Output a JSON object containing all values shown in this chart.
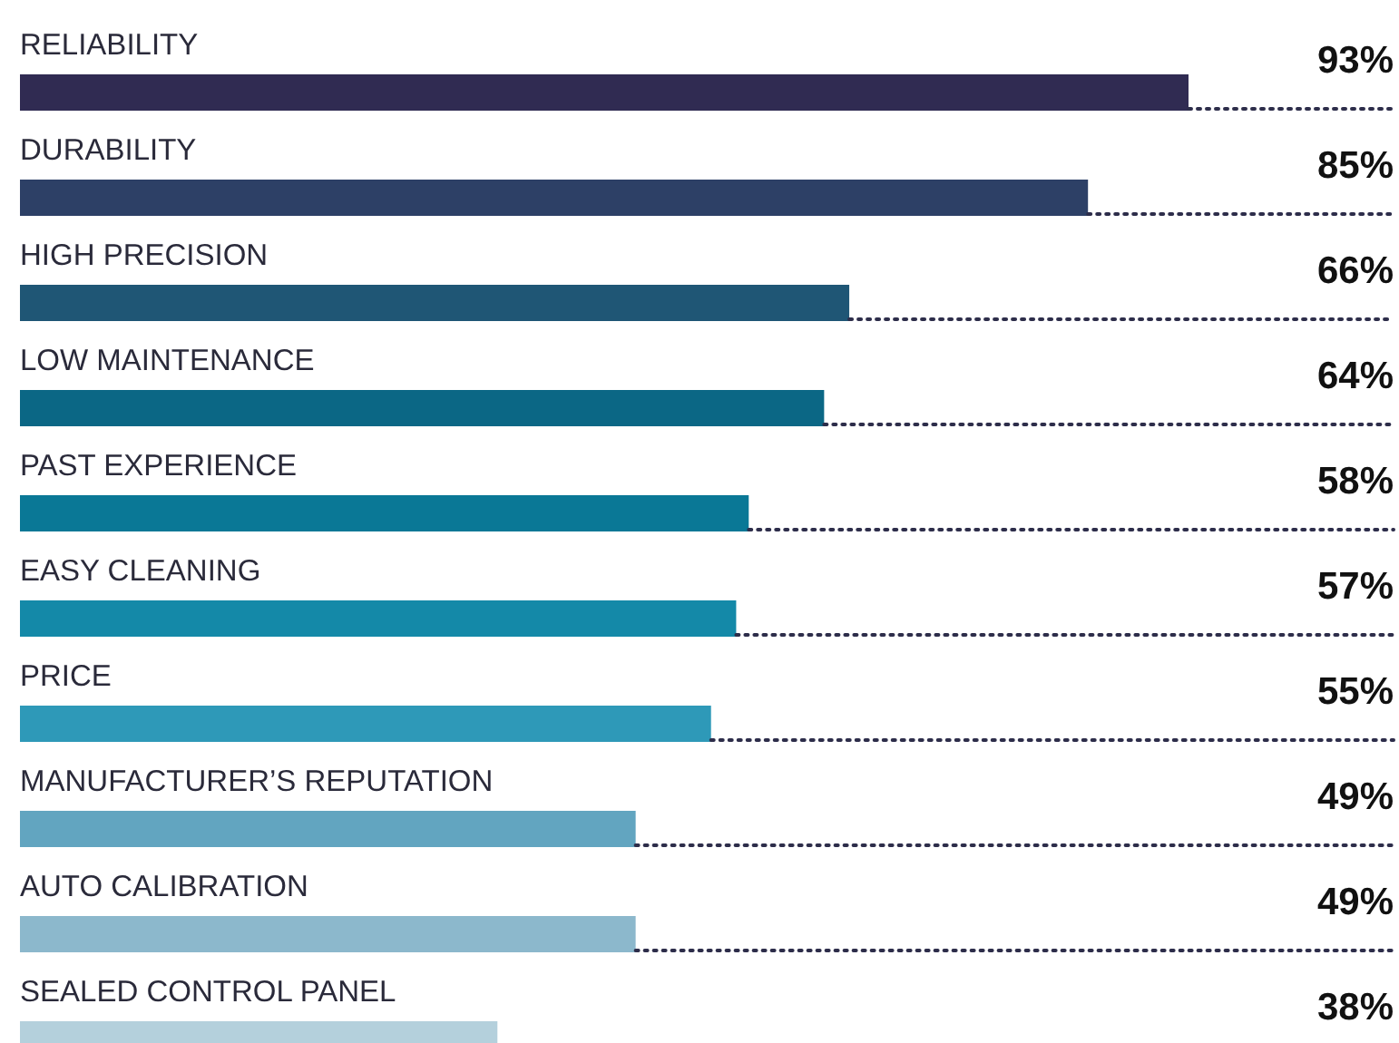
{
  "chart_data": {
    "type": "bar",
    "orientation": "horizontal",
    "value_labels": [
      "93%",
      "85%",
      "66%",
      "64%",
      "58%",
      "57%",
      "55%",
      "49%",
      "49%",
      "38%"
    ],
    "categories": [
      "RELIABILITY",
      "DURABILITY",
      "HIGH PRECISION",
      "LOW MAINTENANCE",
      "PAST EXPERIENCE",
      "EASY CLEANING",
      "PRICE",
      "MANUFACTURER’S REPUTATION",
      "AUTO CALIBRATION",
      "SEALED CONTROL PANEL"
    ],
    "values": [
      93,
      85,
      66,
      64,
      58,
      57,
      55,
      49,
      49,
      38
    ],
    "colors": [
      "#302b52",
      "#2d4066",
      "#1f5675",
      "#0b6785",
      "#0a7896",
      "#1489a8",
      "#2e99b8",
      "#62a5c0",
      "#8cb8cc",
      "#b4d0dc"
    ]
  }
}
